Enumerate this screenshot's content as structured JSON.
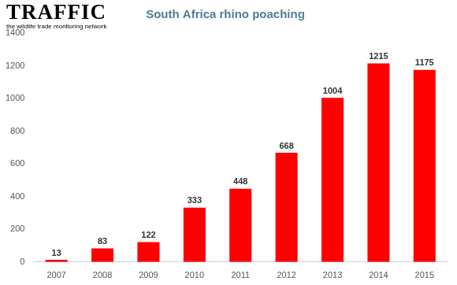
{
  "chart_data": {
    "type": "bar",
    "title": "South Africa rhino poaching",
    "annotations": [
      "TRAFFIC",
      "the wildlife trade monitoring network"
    ],
    "categories": [
      "2007",
      "2008",
      "2009",
      "2010",
      "2011",
      "2012",
      "2013",
      "2014",
      "2015"
    ],
    "values": [
      13,
      83,
      122,
      333,
      448,
      668,
      1004,
      1215,
      1175
    ],
    "color": "#ff0000",
    "ylim": [
      0,
      1400
    ],
    "yticks": [
      0,
      200,
      400,
      600,
      800,
      1000,
      1200,
      1400
    ],
    "grid": false,
    "data_labels": true
  }
}
